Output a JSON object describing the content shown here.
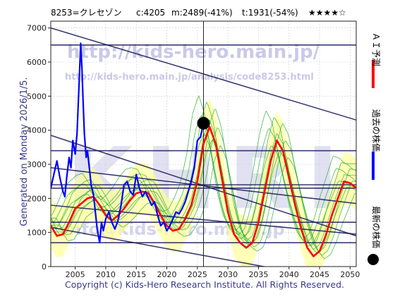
{
  "header": {
    "code": "8253=クレセゾン",
    "close": "c:4205",
    "max": "m:2489(-41%)",
    "target": "t:1931(-54%)",
    "rating": "★★★★☆"
  },
  "watermark": {
    "big": "KHRI",
    "url": "http://kids-hero.main.jp/",
    "url2": "http://kids-hero.main.jp/analysis/code8253.html",
    "email": "info@kids-hero.main.jp"
  },
  "side_label": "Generated on Monday 2026/1/5.",
  "footer": "Copyright (c) Kids-Hero Research Institute. All Rights Reserved.",
  "legend": {
    "ai": "ＡＩ予測",
    "past": "過去の株価",
    "latest": "最新の株価"
  },
  "colors": {
    "ai": "#ff0000",
    "past": "#0000ff",
    "latest": "#000000",
    "green": "#22aa22",
    "band_fill": "#ffff99",
    "green_fill": "#ccee99",
    "line": "#1a1a5a"
  },
  "chart_data": {
    "type": "line",
    "title": "8253=クレセゾン",
    "xlim": [
      2001.0,
      2051.0
    ],
    "ylim": [
      0,
      7200
    ],
    "x_ticks": [
      2005,
      2010,
      2015,
      2020,
      2025,
      2030,
      2035,
      2040,
      2045,
      2050
    ],
    "y_ticks": [
      0,
      1000,
      2000,
      3000,
      4000,
      5000,
      6000,
      7000
    ],
    "latest_point": {
      "x": 2026.0,
      "y": 4205
    },
    "horizontal_levels": [
      6500,
      3400,
      2400,
      2300,
      1300,
      700
    ],
    "series": [
      {
        "name": "過去の株価",
        "x": [
          2001.0,
          2001.5,
          2002.0,
          2002.5,
          2003.0,
          2003.3,
          2003.6,
          2004.0,
          2004.3,
          2004.6,
          2005.0,
          2005.3,
          2005.6,
          2005.9,
          2006.1,
          2006.3,
          2006.5,
          2006.8,
          2007.0,
          2007.3,
          2007.6,
          2008.0,
          2008.3,
          2008.6,
          2009.0,
          2009.3,
          2009.6,
          2010.0,
          2010.5,
          2011.0,
          2011.5,
          2012.0,
          2012.5,
          2013.0,
          2013.5,
          2014.0,
          2014.5,
          2015.0,
          2015.5,
          2016.0,
          2016.5,
          2017.0,
          2017.5,
          2018.0,
          2018.5,
          2019.0,
          2019.5,
          2020.0,
          2020.5,
          2021.0,
          2021.5,
          2022.0,
          2022.5,
          2023.0,
          2023.5,
          2024.0,
          2024.5,
          2025.0,
          2025.5,
          2026.0
        ],
        "y": [
          2300,
          2700,
          3100,
          2600,
          2200,
          2050,
          2600,
          3200,
          2900,
          3700,
          3300,
          3900,
          5200,
          6550,
          5800,
          4800,
          3900,
          3200,
          3400,
          2900,
          2400,
          2100,
          1600,
          1100,
          700,
          1300,
          1050,
          1400,
          1600,
          1300,
          1100,
          1350,
          1800,
          2400,
          2500,
          2200,
          2100,
          2700,
          2300,
          2050,
          2200,
          2000,
          1800,
          1900,
          1500,
          1200,
          1300,
          1050,
          1200,
          1400,
          1600,
          1550,
          1700,
          1900,
          2200,
          2500,
          2900,
          3700,
          3800,
          4205
        ]
      },
      {
        "name": "ＡＩ予測",
        "x": [
          2001.0,
          2002.0,
          2003.0,
          2004.0,
          2005.0,
          2006.0,
          2007.0,
          2008.0,
          2009.0,
          2010.0,
          2011.0,
          2012.0,
          2013.0,
          2014.0,
          2015.0,
          2016.0,
          2017.0,
          2018.0,
          2019.0,
          2020.0,
          2021.0,
          2022.0,
          2023.0,
          2024.0,
          2025.0,
          2026.0,
          2027.0,
          2028.0,
          2029.0,
          2030.0,
          2031.0,
          2032.0,
          2033.0,
          2034.0,
          2035.0,
          2036.0,
          2037.0,
          2038.0,
          2039.0,
          2040.0,
          2041.0,
          2042.0,
          2043.0,
          2044.0,
          2045.0,
          2046.0,
          2047.0,
          2048.0,
          2049.0,
          2050.0,
          2051.0
        ],
        "y": [
          1200,
          900,
          950,
          1300,
          1700,
          1850,
          2000,
          2050,
          1800,
          1500,
          1350,
          1500,
          1700,
          1950,
          2150,
          2200,
          2150,
          1850,
          1500,
          1200,
          1050,
          1100,
          1400,
          1800,
          2500,
          3600,
          4100,
          3600,
          2600,
          1600,
          950,
          700,
          550,
          700,
          1300,
          2200,
          3100,
          3700,
          3400,
          2600,
          1800,
          1100,
          550,
          300,
          450,
          900,
          1500,
          2000,
          2500,
          2450,
          2300
        ]
      }
    ],
    "trend_lines": [
      {
        "p1": [
          2001.0,
          7000
        ],
        "p2": [
          2051.0,
          4300
        ]
      },
      {
        "p1": [
          2001.0,
          3850
        ],
        "p2": [
          2051.0,
          900
        ]
      },
      {
        "p1": [
          2001.0,
          2900
        ],
        "p2": [
          2051.0,
          1850
        ]
      },
      {
        "p1": [
          2001.0,
          1800
        ],
        "p2": [
          2051.0,
          950
        ]
      },
      {
        "p1": [
          2001.0,
          1150
        ],
        "p2": [
          2051.0,
          -500
        ]
      }
    ]
  }
}
